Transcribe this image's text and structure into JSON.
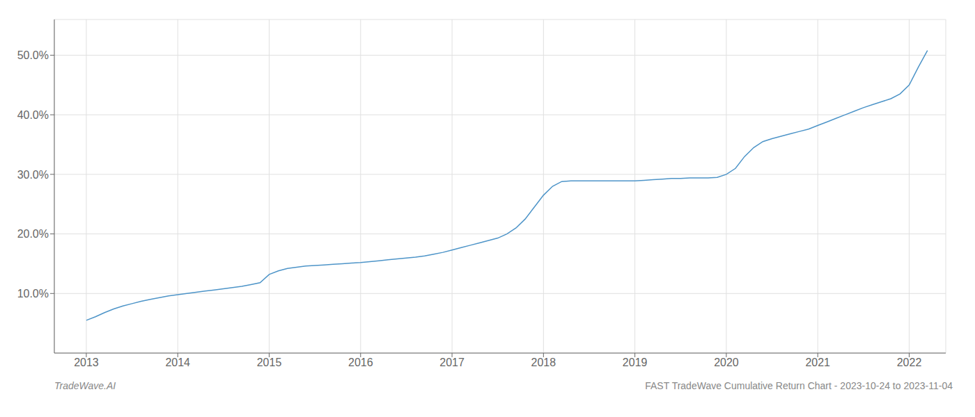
{
  "chart_data": {
    "type": "line",
    "title": "FAST TradeWave Cumulative Return Chart - 2023-10-24 to 2023-11-04",
    "annotations": [
      "TradeWave.AI"
    ],
    "x": [
      2013.0,
      2013.1,
      2013.2,
      2013.3,
      2013.4,
      2013.5,
      2013.6,
      2013.7,
      2013.8,
      2013.9,
      2014.0,
      2014.1,
      2014.2,
      2014.3,
      2014.4,
      2014.5,
      2014.6,
      2014.7,
      2014.8,
      2014.9,
      2015.0,
      2015.1,
      2015.2,
      2015.3,
      2015.4,
      2015.5,
      2015.6,
      2015.7,
      2015.8,
      2015.9,
      2016.0,
      2016.1,
      2016.2,
      2016.3,
      2016.4,
      2016.5,
      2016.6,
      2016.7,
      2016.8,
      2016.9,
      2017.0,
      2017.1,
      2017.2,
      2017.3,
      2017.4,
      2017.5,
      2017.6,
      2017.7,
      2017.8,
      2017.9,
      2018.0,
      2018.1,
      2018.2,
      2018.3,
      2018.4,
      2018.5,
      2018.6,
      2018.7,
      2018.8,
      2018.9,
      2019.0,
      2019.1,
      2019.2,
      2019.3,
      2019.4,
      2019.5,
      2019.6,
      2019.7,
      2019.8,
      2019.9,
      2020.0,
      2020.1,
      2020.2,
      2020.3,
      2020.4,
      2020.5,
      2020.6,
      2020.7,
      2020.8,
      2020.9,
      2021.0,
      2021.1,
      2021.2,
      2021.3,
      2021.4,
      2021.5,
      2021.6,
      2021.7,
      2021.8,
      2021.9,
      2022.0,
      2022.1,
      2022.2
    ],
    "values": [
      5.5,
      6.1,
      6.8,
      7.4,
      7.9,
      8.3,
      8.7,
      9.0,
      9.3,
      9.6,
      9.8,
      10.0,
      10.2,
      10.4,
      10.6,
      10.8,
      11.0,
      11.2,
      11.5,
      11.8,
      13.2,
      13.8,
      14.2,
      14.4,
      14.6,
      14.7,
      14.8,
      14.9,
      15.0,
      15.1,
      15.2,
      15.35,
      15.5,
      15.65,
      15.8,
      15.95,
      16.1,
      16.3,
      16.6,
      16.9,
      17.3,
      17.7,
      18.1,
      18.5,
      18.9,
      19.3,
      20.0,
      21.0,
      22.5,
      24.5,
      26.5,
      28.0,
      28.8,
      28.9,
      28.9,
      28.9,
      28.9,
      28.9,
      28.9,
      28.9,
      28.9,
      29.0,
      29.1,
      29.2,
      29.3,
      29.3,
      29.4,
      29.4,
      29.4,
      29.5,
      30.0,
      31.0,
      33.0,
      34.5,
      35.5,
      36.0,
      36.4,
      36.8,
      37.2,
      37.6,
      38.2,
      38.8,
      39.4,
      40.0,
      40.6,
      41.2,
      41.7,
      42.2,
      42.7,
      43.5,
      45.0,
      48.0,
      50.8
    ],
    "color": "#4d94c8",
    "xlim": [
      2012.65,
      2022.4
    ],
    "xticks": [
      2013,
      2014,
      2015,
      2016,
      2017,
      2018,
      2019,
      2020,
      2021,
      2022
    ],
    "ylim": [
      0,
      56
    ],
    "yticks": [
      {
        "value": 10.0,
        "label": "10.0%"
      },
      {
        "value": 20.0,
        "label": "20.0%"
      },
      {
        "value": 30.0,
        "label": "30.0%"
      },
      {
        "value": 40.0,
        "label": "40.0%"
      },
      {
        "value": 50.0,
        "label": "50.0%"
      }
    ],
    "grid": true
  }
}
